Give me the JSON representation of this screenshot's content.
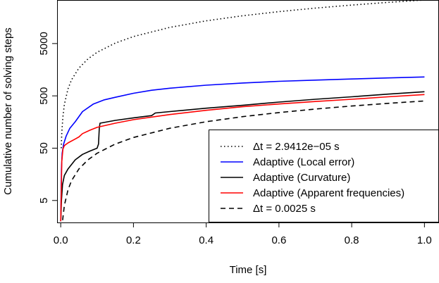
{
  "chart_data": {
    "type": "line",
    "xlabel": "Time [s]",
    "ylabel": "Cumulative number of solving steps",
    "xlim": [
      -0.01,
      1.04
    ],
    "ylim": [
      1.9,
      34000
    ],
    "y_scale": "log",
    "x_ticks": [
      0.0,
      0.2,
      0.4,
      0.6,
      0.8,
      1.0
    ],
    "x_tick_labels": [
      "0.0",
      "0.2",
      "0.4",
      "0.6",
      "0.8",
      "1.0"
    ],
    "y_ticks": [
      5,
      50,
      500,
      5000
    ],
    "y_tick_labels": [
      "5",
      "50",
      "500",
      "5000"
    ],
    "grid": false,
    "legend": "bottom-right",
    "series": [
      {
        "name": "Δt = 2.9412e−05 s",
        "color": "#000000",
        "style": "dotted",
        "x": [
          0.0015,
          0.003,
          0.006,
          0.01,
          0.02,
          0.03,
          0.05,
          0.075,
          0.1,
          0.15,
          0.2,
          0.3,
          0.4,
          0.5,
          0.6,
          0.7,
          0.8,
          0.9,
          1.0
        ],
        "y": [
          50,
          100,
          200,
          340,
          680,
          1020,
          1700,
          2550,
          3400,
          5100,
          6800,
          10200,
          13600,
          17000,
          20400,
          23800,
          27200,
          30600,
          34000
        ]
      },
      {
        "name": "Adaptive (Local error)",
        "color": "#0000ff",
        "style": "solid",
        "x": [
          0.0,
          0.002,
          0.004,
          0.008,
          0.015,
          0.025,
          0.04,
          0.06,
          0.09,
          0.12,
          0.15,
          0.2,
          0.25,
          0.3,
          0.4,
          0.5,
          0.6,
          0.7,
          0.8,
          0.9,
          1.0
        ],
        "y": [
          2,
          20,
          40,
          60,
          85,
          120,
          160,
          250,
          350,
          420,
          470,
          560,
          640,
          700,
          800,
          880,
          950,
          1000,
          1050,
          1100,
          1150
        ]
      },
      {
        "name": "Adaptive (Curvature)",
        "color": "#000000",
        "style": "solid",
        "x": [
          0.0,
          0.002,
          0.005,
          0.01,
          0.02,
          0.04,
          0.06,
          0.08,
          0.1,
          0.104,
          0.106,
          0.108,
          0.15,
          0.2,
          0.25,
          0.26,
          0.3,
          0.4,
          0.5,
          0.6,
          0.7,
          0.8,
          0.9,
          1.0
        ],
        "y": [
          2,
          5,
          10,
          15,
          20,
          30,
          38,
          44,
          50,
          60,
          120,
          150,
          170,
          190,
          210,
          235,
          250,
          290,
          330,
          380,
          430,
          480,
          540,
          600
        ]
      },
      {
        "name": "Adaptive (Apparent frequencies)",
        "color": "#ff0000",
        "style": "solid",
        "x": [
          0.0,
          0.003,
          0.006,
          0.01,
          0.02,
          0.04,
          0.05,
          0.06,
          0.08,
          0.1,
          0.15,
          0.2,
          0.3,
          0.4,
          0.5,
          0.6,
          0.7,
          0.8,
          0.9,
          1.0
        ],
        "y": [
          2,
          28,
          48,
          56,
          63,
          75,
          82,
          95,
          110,
          125,
          150,
          175,
          220,
          265,
          310,
          350,
          390,
          430,
          480,
          530
        ]
      },
      {
        "name": "Δt = 0.0025 s",
        "color": "#000000",
        "style": "dashed",
        "x": [
          0.0025,
          0.005,
          0.01,
          0.02,
          0.03,
          0.05,
          0.075,
          0.1,
          0.15,
          0.2,
          0.3,
          0.4,
          0.5,
          0.6,
          0.7,
          0.8,
          0.9,
          1.0
        ],
        "y": [
          1,
          2,
          4,
          8,
          12,
          20,
          30,
          40,
          60,
          80,
          120,
          160,
          200,
          240,
          280,
          320,
          360,
          400
        ]
      }
    ]
  }
}
